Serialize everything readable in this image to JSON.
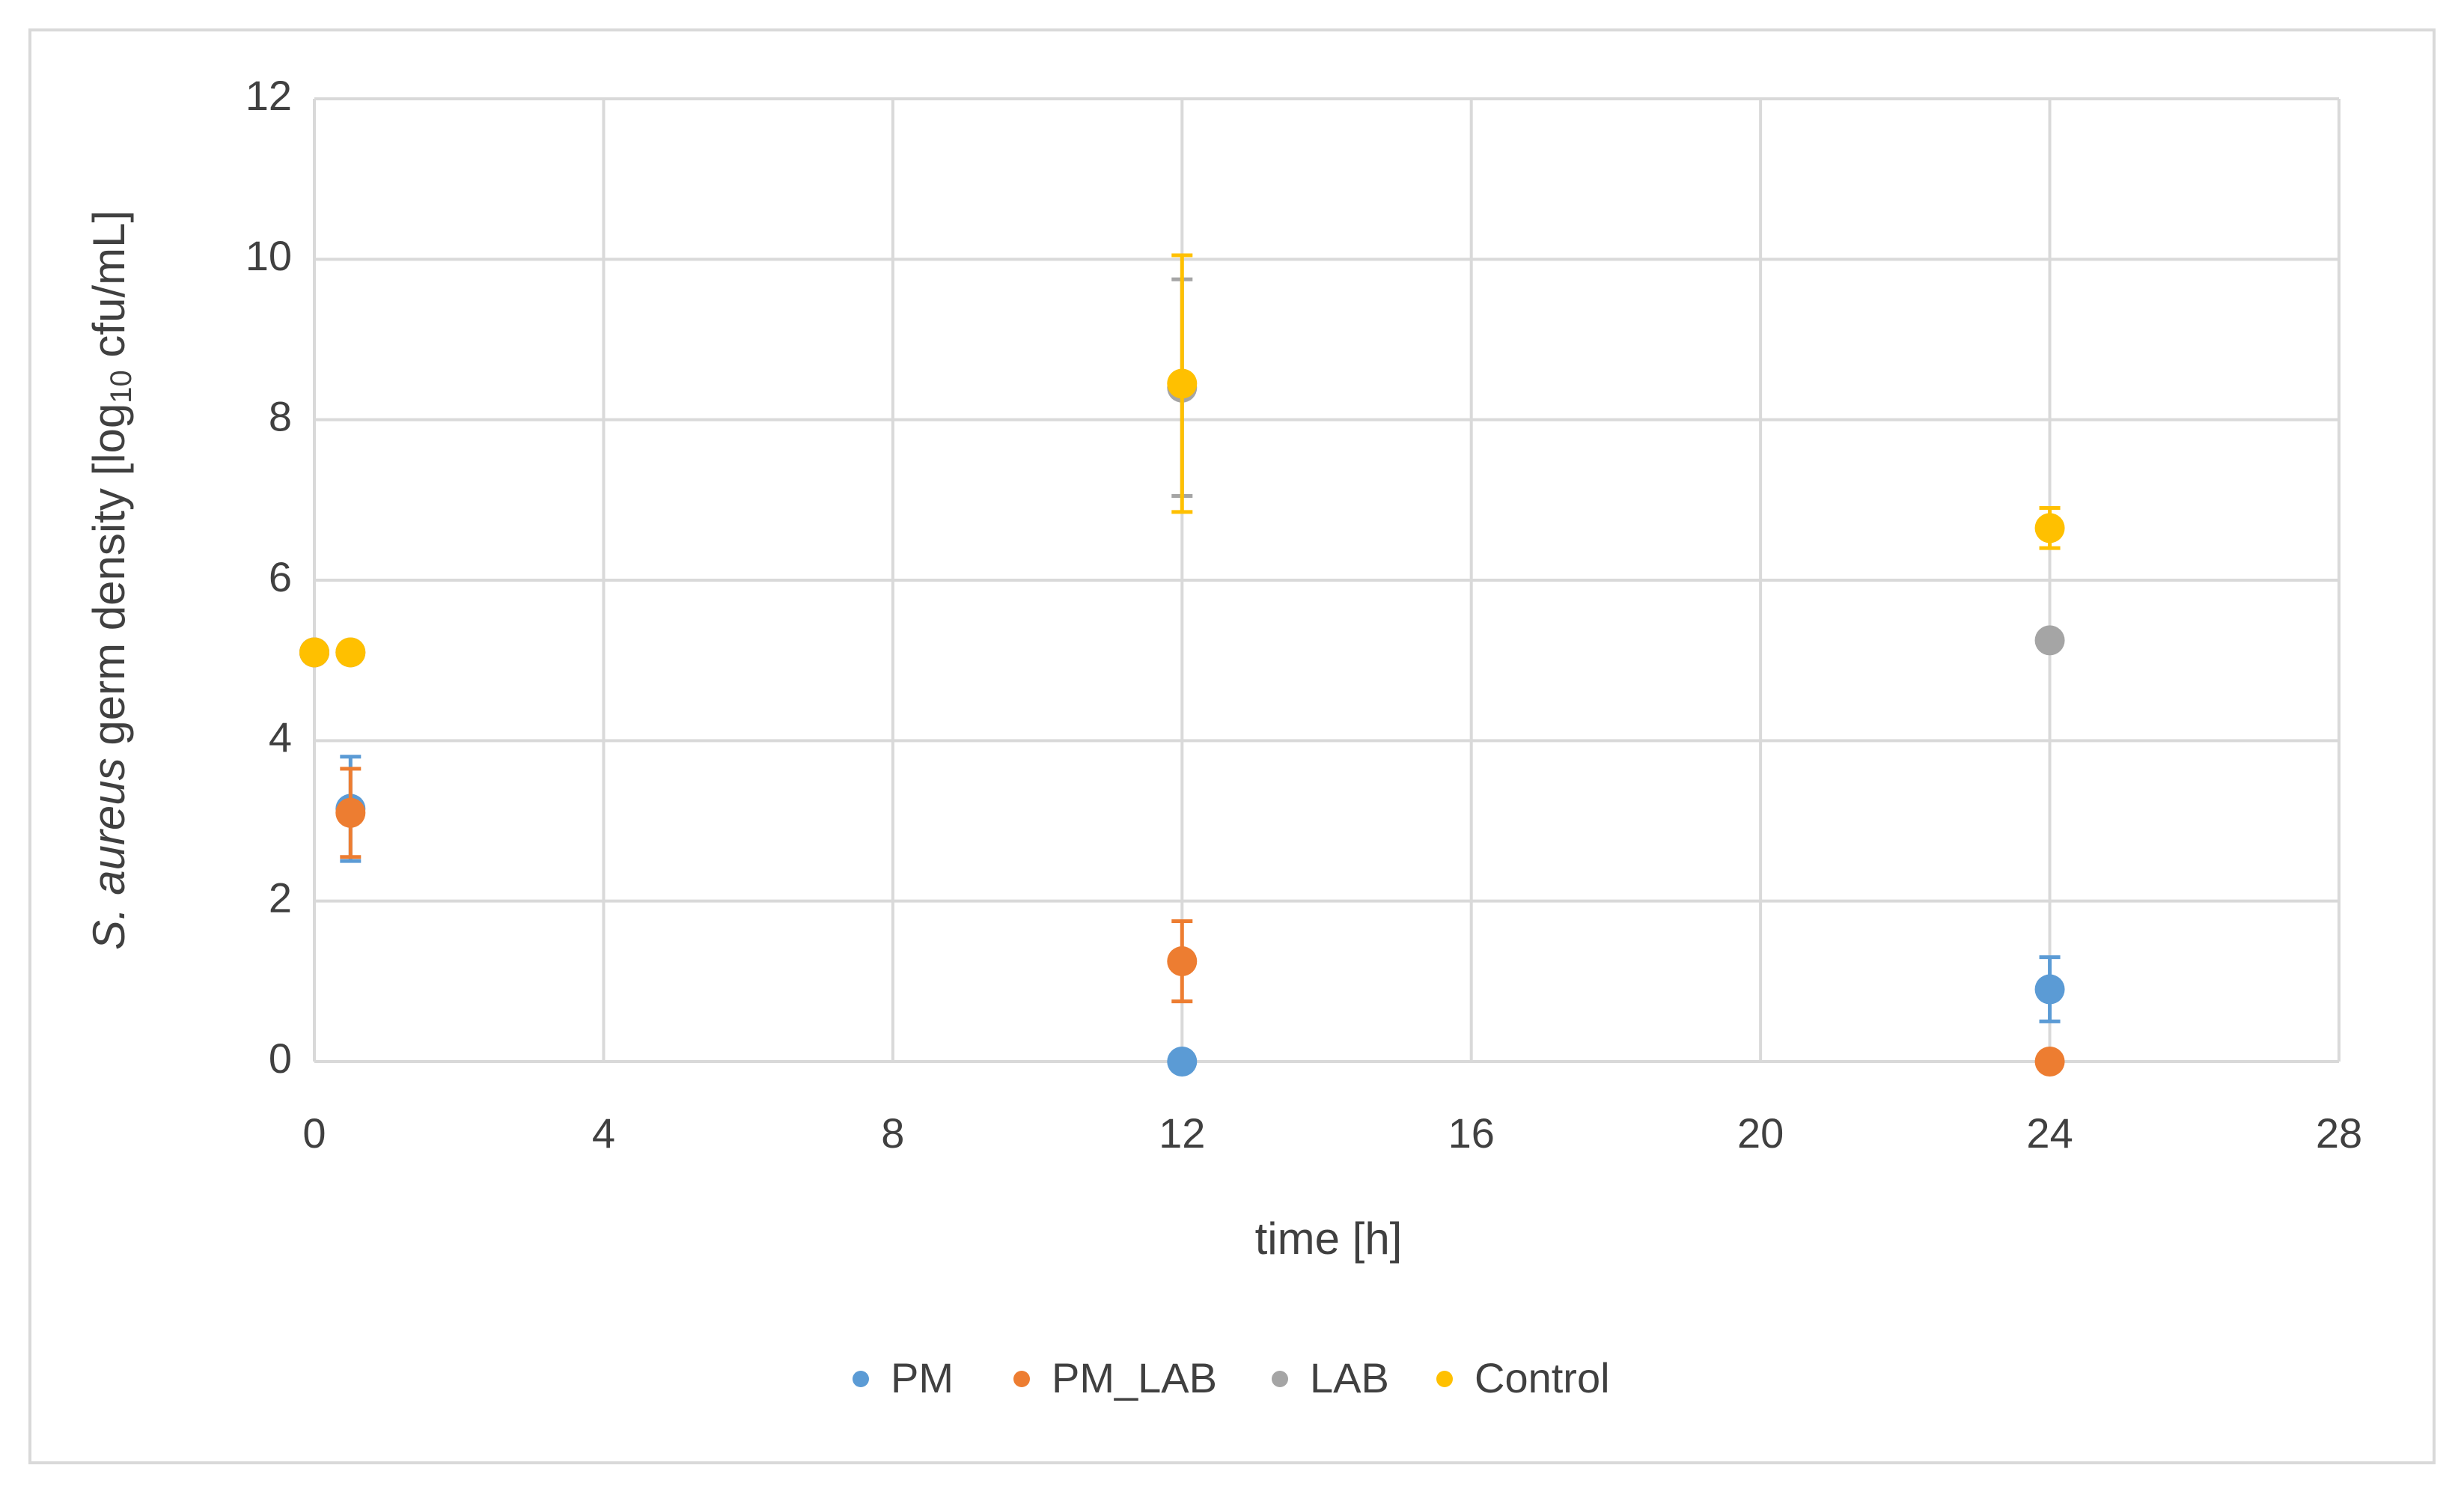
{
  "chart_data": {
    "type": "scatter",
    "y_label": [
      "S. aureus",
      " germ density [log",
      "10",
      " cfu/mL]"
    ],
    "x_label": "time [h]",
    "xlim": [
      0,
      28
    ],
    "xticks": [
      0,
      4,
      8,
      12,
      16,
      20,
      24,
      28
    ],
    "ylim": [
      0,
      12
    ],
    "yticks": [
      0,
      2,
      4,
      6,
      8,
      10,
      12
    ],
    "grid": true,
    "legend": "bottom",
    "x": [
      0,
      0.5,
      12,
      24
    ],
    "series": [
      {
        "name": "PM",
        "color": "#5b9bd5",
        "values": [
          5.1,
          3.15,
          0,
          0.9
        ],
        "errors": [
          null,
          0.65,
          null,
          0.4
        ]
      },
      {
        "name": "PM_LAB",
        "color": "#ed7d31",
        "values": [
          5.1,
          3.1,
          1.25,
          0
        ],
        "errors": [
          null,
          0.55,
          0.5,
          null
        ]
      },
      {
        "name": "LAB",
        "color": "#a5a5a5",
        "values": [
          5.1,
          5.1,
          8.4,
          5.25
        ],
        "errors": [
          null,
          null,
          1.35,
          0.1
        ]
      },
      {
        "name": "Control",
        "color": "#ffc000",
        "values": [
          5.1,
          5.1,
          8.45,
          6.65
        ],
        "errors": [
          null,
          null,
          1.6,
          0.25
        ]
      }
    ]
  }
}
